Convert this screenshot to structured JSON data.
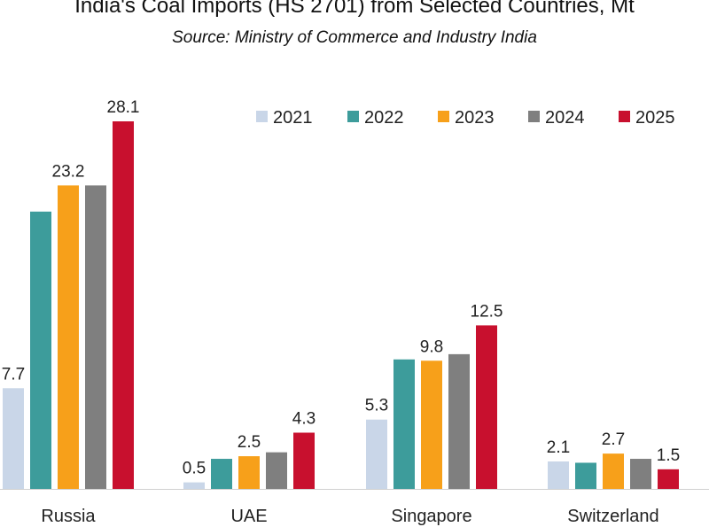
{
  "header": {
    "title": "India's Coal Imports (HS 2701) from Selected Countries, Mt",
    "subtitle": "Source: Ministry of Commerce and Industry India"
  },
  "chart_data": {
    "type": "bar",
    "categories": [
      "Russia",
      "UAE",
      "Singapore",
      "Switzerland"
    ],
    "series": [
      {
        "name": "2021",
        "color": "#c9d6e8",
        "values": [
          7.7,
          0.5,
          5.3,
          2.1
        ],
        "labels": [
          "7.7",
          "0.5",
          "5.3",
          "2.1"
        ]
      },
      {
        "name": "2022",
        "color": "#3d9c9b",
        "values": [
          21.2,
          2.3,
          9.9,
          2.0
        ],
        "labels": [
          null,
          null,
          null,
          null
        ]
      },
      {
        "name": "2023",
        "color": "#f7a01a",
        "values": [
          23.2,
          2.5,
          9.8,
          2.7
        ],
        "labels": [
          "23.2",
          "2.5",
          "9.8",
          "2.7"
        ]
      },
      {
        "name": "2024",
        "color": "#7f7f7f",
        "values": [
          23.2,
          2.8,
          10.3,
          2.3
        ],
        "labels": [
          null,
          null,
          null,
          null
        ]
      },
      {
        "name": "2025",
        "color": "#c8102e",
        "values": [
          28.1,
          4.3,
          12.5,
          1.5
        ],
        "labels": [
          "28.1",
          "4.3",
          "12.5",
          "1.5"
        ]
      }
    ],
    "ylim": [
      0,
      28.1
    ],
    "grid": false,
    "legend_position": "top-right"
  }
}
